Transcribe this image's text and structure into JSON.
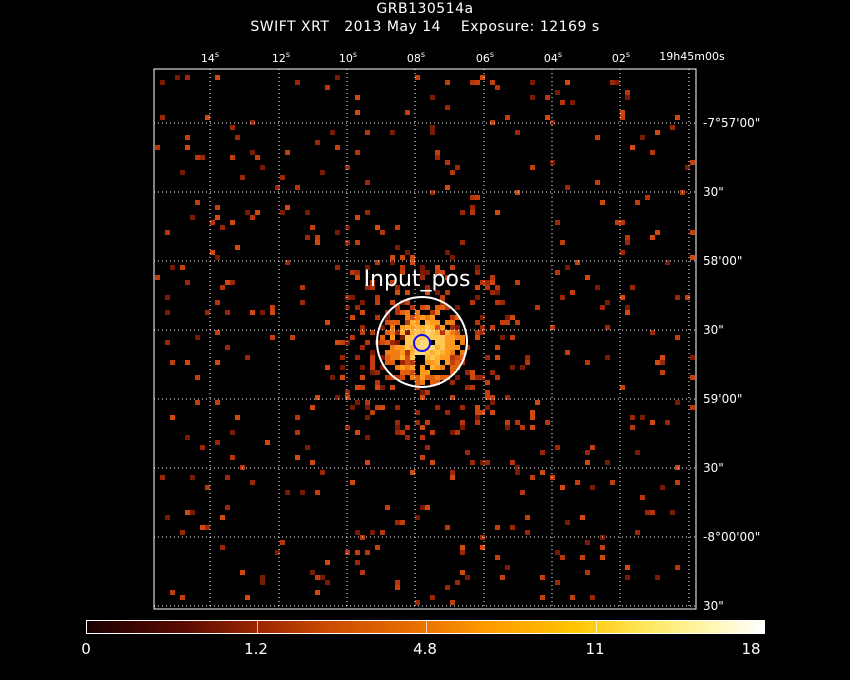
{
  "title": {
    "line1": "GRB130514a",
    "line2": "SWIFT XRT   2013 May 14    Exposure: 12169 s"
  },
  "ra_ticks": [
    {
      "num": "14",
      "sec": "s"
    },
    {
      "num": "12",
      "sec": "s"
    },
    {
      "num": "10",
      "sec": "s"
    },
    {
      "num": "08",
      "sec": "s"
    },
    {
      "num": "06",
      "sec": "s"
    },
    {
      "num": "04",
      "sec": "s"
    },
    {
      "num": "02",
      "sec": "s"
    },
    {
      "num": "19h45m00s"
    }
  ],
  "dec_ticks": [
    "-7°57'00\"",
    "30\"",
    "58'00\"",
    "30\"",
    "59'00\"",
    "30\"",
    "-8°00'00\"",
    "30\""
  ],
  "region_label": "Input_pos",
  "colorbar": {
    "labels": [
      "0",
      "1.2",
      "4.8",
      "11",
      "18"
    ]
  },
  "colors": {
    "grid": "#ffffff",
    "source_circle": "#ffffff",
    "position_marker": "#0000ff",
    "dim_pixel": "#b02a0a",
    "bright_pixel": "#ffd070"
  }
}
